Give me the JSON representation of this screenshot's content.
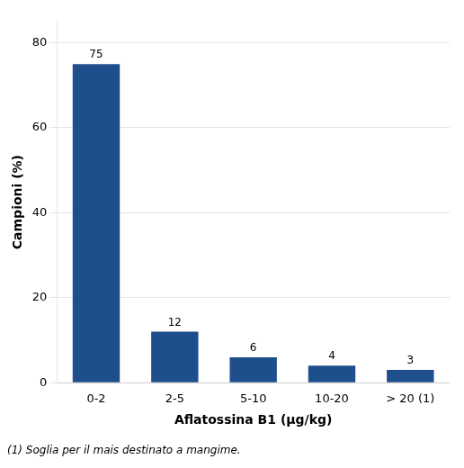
{
  "chart_data": {
    "type": "bar",
    "categories": [
      "0-2",
      "2-5",
      "5-10",
      "10-20",
      "> 20 (1)"
    ],
    "values": [
      75,
      12,
      6,
      4,
      3
    ],
    "color": "#1F4E8C",
    "xlabel": "Aflatossina B1 (μg/kg)",
    "ylabel": "Campioni (%)",
    "footnote": "(1) Soglia per il mais destinato a mangime.",
    "ylim": [
      0,
      85
    ],
    "yticks": [
      0,
      20,
      40,
      60,
      80
    ],
    "grid": true,
    "data_labels": true
  }
}
